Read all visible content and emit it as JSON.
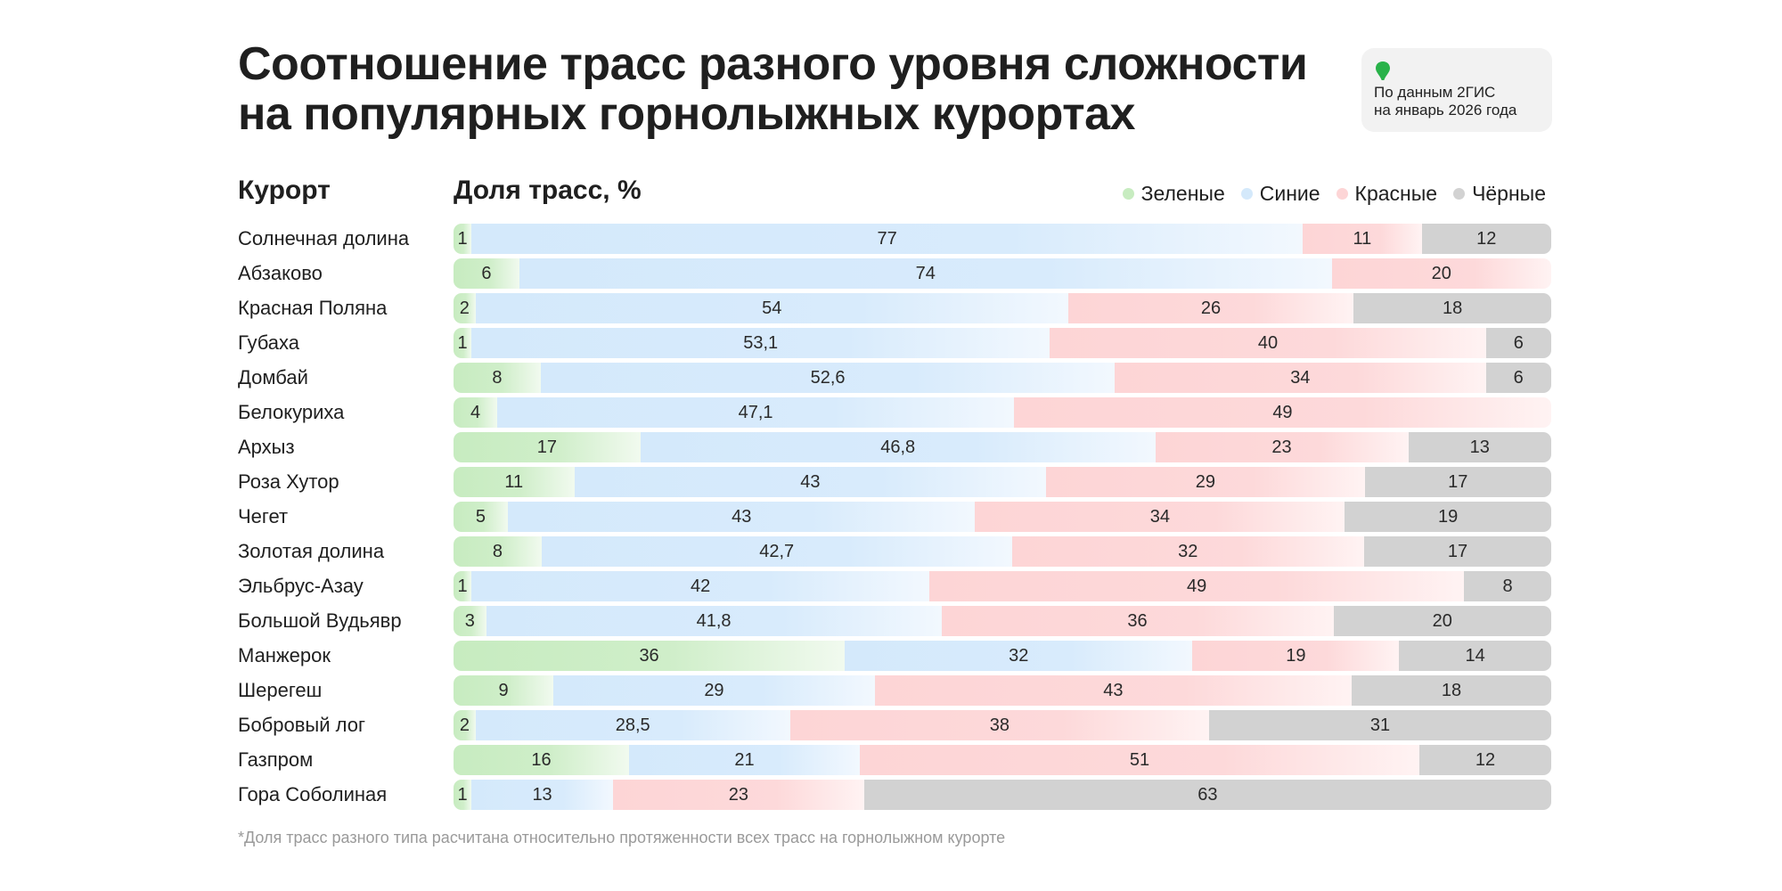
{
  "title": {
    "line1": "Соотношение трасс разного уровня сложности",
    "line2": "на популярных горнолыжных курортах"
  },
  "source": {
    "line1": "По данным 2ГИС",
    "line2": "на январь 2026 года",
    "icon": "map-pin-icon",
    "icon_color": "#29b24a"
  },
  "headers": {
    "resort": "Курорт",
    "share": "Доля трасс, %"
  },
  "legend": {
    "green": "Зеленые",
    "blue": "Синие",
    "red": "Красные",
    "black": "Чёрные"
  },
  "colors": {
    "green": "#c7ecc0",
    "blue": "#d4e9fb",
    "red": "#fdd5d6",
    "black": "#d2d2d2"
  },
  "footnote": "*Доля трасс разного типа расчитана относительно протяженности всех трасс на горнолыжном курорте",
  "chart_data": {
    "type": "bar",
    "stacked": true,
    "orientation": "horizontal",
    "unit": "%",
    "categories": [
      "Солнечная долина",
      "Абзаково",
      "Красная Поляна",
      "Губаха",
      "Домбай",
      "Белокуриха",
      "Архыз",
      "Роза Хутор",
      "Чегет",
      "Золотая долина",
      "Эльбрус-Азау",
      "Большой Вудьявр",
      "Манжерок",
      "Шерегеш",
      "Бобровый лог",
      "Газпром",
      "Гора Соболиная"
    ],
    "series": [
      {
        "name": "Зеленые",
        "key": "green",
        "values": [
          1,
          6,
          2,
          1,
          8,
          4,
          17,
          11,
          5,
          8,
          1,
          3,
          36,
          9,
          2,
          16,
          1
        ],
        "labels": [
          "1",
          "6",
          "2",
          "1",
          "8",
          "4",
          "17",
          "11",
          "5",
          "8",
          "1",
          "3",
          "36",
          "9",
          "2",
          "16",
          "1"
        ]
      },
      {
        "name": "Синие",
        "key": "blue",
        "values": [
          77,
          74,
          54,
          53.1,
          52.6,
          47.1,
          46.8,
          43,
          43,
          42.7,
          42,
          41.8,
          32,
          29,
          28.5,
          21,
          13
        ],
        "labels": [
          "77",
          "74",
          "54",
          "53,1",
          "52,6",
          "47,1",
          "46,8",
          "43",
          "43",
          "42,7",
          "42",
          "41,8",
          "32",
          "29",
          "28,5",
          "21",
          "13"
        ]
      },
      {
        "name": "Красные",
        "key": "red",
        "values": [
          11,
          20,
          26,
          40,
          34,
          49,
          23,
          29,
          34,
          32,
          49,
          36,
          19,
          43,
          38,
          51,
          23
        ],
        "labels": [
          "11",
          "20",
          "26",
          "40",
          "34",
          "49",
          "23",
          "29",
          "34",
          "32",
          "49",
          "36",
          "19",
          "43",
          "38",
          "51",
          "23"
        ]
      },
      {
        "name": "Чёрные",
        "key": "black",
        "values": [
          12,
          0,
          18,
          6,
          6,
          0,
          13,
          17,
          19,
          17,
          8,
          20,
          14,
          18,
          31,
          12,
          63
        ],
        "labels": [
          "12",
          "",
          "18",
          "6",
          "6",
          "",
          "13",
          "17",
          "19",
          "17",
          "8",
          "20",
          "14",
          "18",
          "31",
          "12",
          "63"
        ]
      }
    ]
  }
}
